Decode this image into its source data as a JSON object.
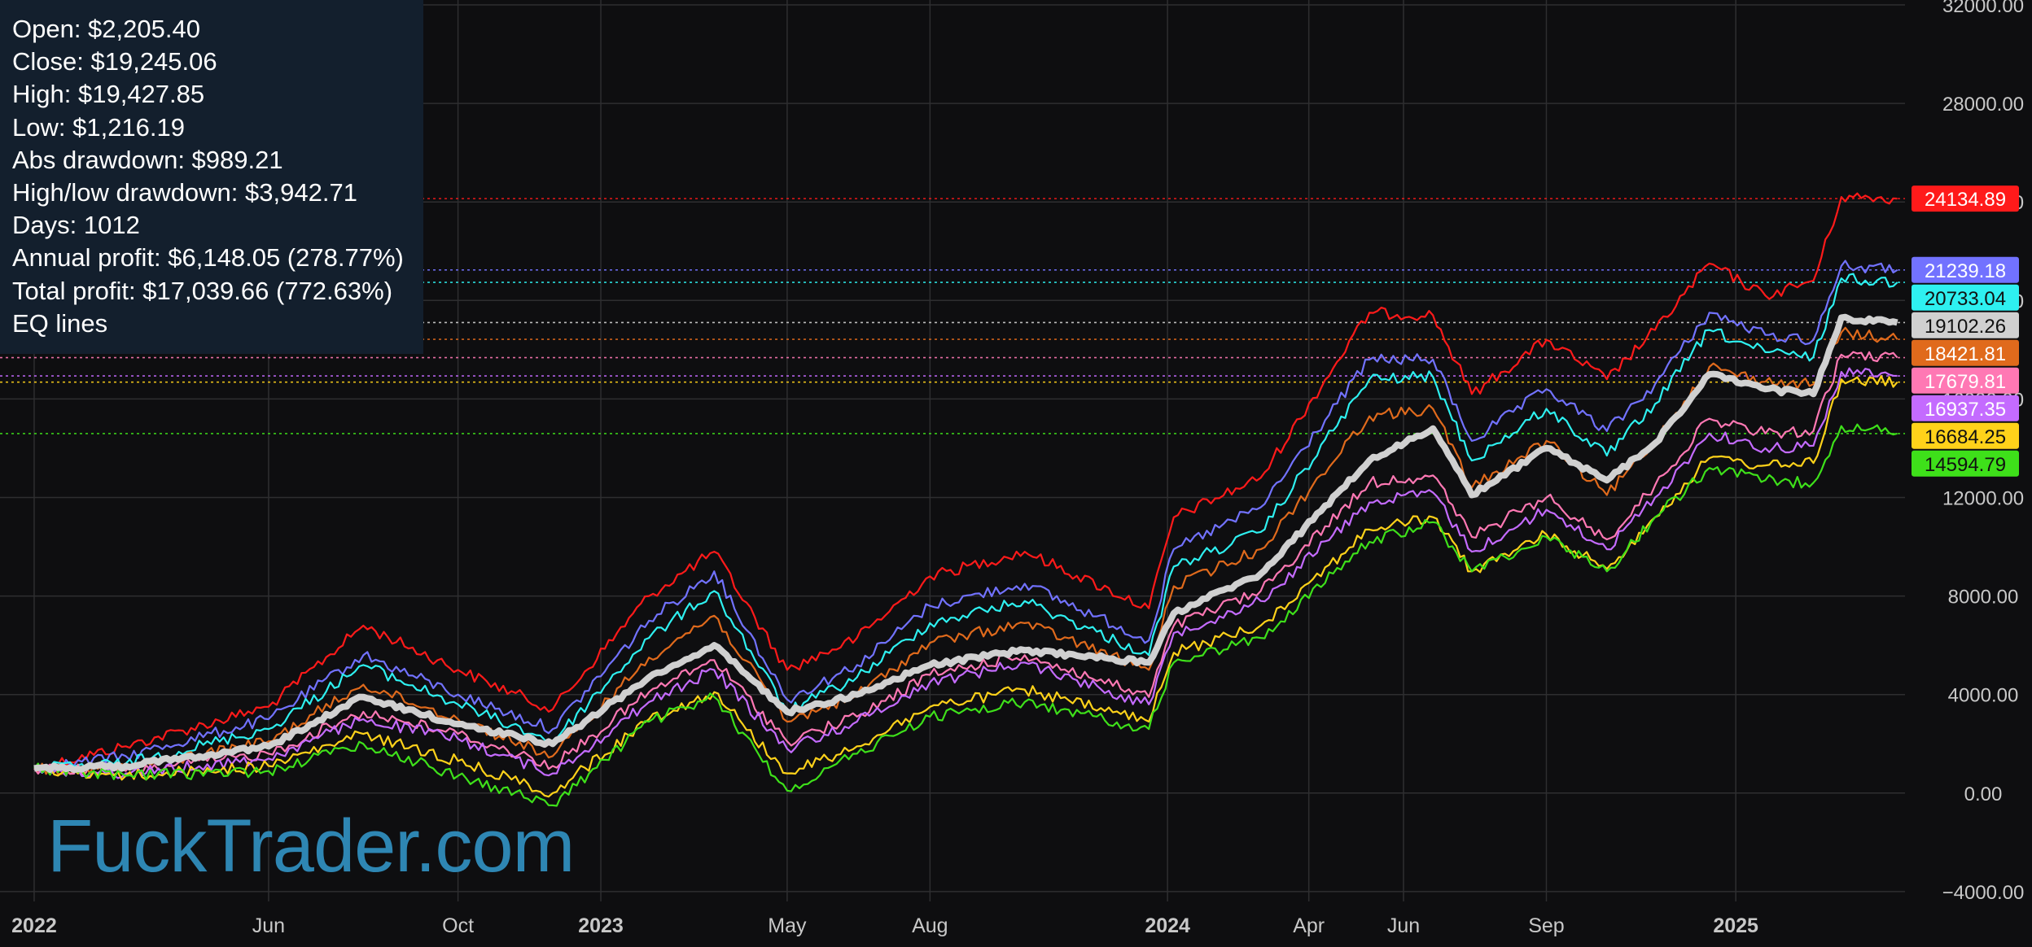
{
  "stats": {
    "open": "Open: $2,205.40",
    "close": "Close: $19,245.06",
    "high": "High: $19,427.85",
    "low": "Low: $1,216.19",
    "abs_drawdown": "Abs drawdown: $989.21",
    "high_low_drawdown": "High/low drawdown: $3,942.71",
    "days": "Days: 1012",
    "annual_profit": "Annual profit: $6,148.05 (278.77%)",
    "total_profit": "Total profit: $17,039.66 (772.63%)",
    "eq_lines": "EQ lines"
  },
  "watermark": "FuckTrader.com",
  "colors": {
    "background": "#0e0e10",
    "grid": "#2e2e30",
    "axis_text": "#c8c8c8",
    "panel": "#131f2d",
    "watermark": "#2e86b3"
  },
  "chart_data": {
    "type": "line",
    "title": "",
    "xlabel": "",
    "ylabel": "",
    "ylim": [
      -4600,
      32000
    ],
    "y_ticks": [
      "32000.00",
      "28000.00",
      "24000.00",
      "20000.00",
      "16000.00",
      "12000.00",
      "8000.00",
      "4000.00",
      "0.00",
      "−4000.00"
    ],
    "x_ticks": [
      {
        "label": "2022",
        "date": "2022-01-01",
        "bold": true
      },
      {
        "label": "Jun",
        "date": "2022-06-01",
        "bold": false
      },
      {
        "label": "Oct",
        "date": "2022-10-01",
        "bold": false
      },
      {
        "label": "2023",
        "date": "2023-01-01",
        "bold": true
      },
      {
        "label": "May",
        "date": "2023-05-01",
        "bold": false
      },
      {
        "label": "Aug",
        "date": "2023-08-01",
        "bold": false
      },
      {
        "label": "2024",
        "date": "2024-01-01",
        "bold": true
      },
      {
        "label": "Apr",
        "date": "2024-04-01",
        "bold": false
      },
      {
        "label": "Jun",
        "date": "2024-06-01",
        "bold": false
      },
      {
        "label": "Sep",
        "date": "2024-09-01",
        "bold": false
      },
      {
        "label": "2025",
        "date": "2025-01-01",
        "bold": true
      }
    ],
    "x_range": [
      "2021-12-10",
      "2025-04-20"
    ],
    "grid": true,
    "series": [
      {
        "color": "#ff1a1a",
        "last_label": "24134.89",
        "points": [
          [
            "2022-01-01",
            1000
          ],
          [
            "2022-03-01",
            1900
          ],
          [
            "2022-06-01",
            3500
          ],
          [
            "2022-08-01",
            6800
          ],
          [
            "2022-10-01",
            5000
          ],
          [
            "2022-12-01",
            3400
          ],
          [
            "2023-02-01",
            8000
          ],
          [
            "2023-03-15",
            9800
          ],
          [
            "2023-05-01",
            5000
          ],
          [
            "2023-06-15",
            6300
          ],
          [
            "2023-08-01",
            8800
          ],
          [
            "2023-10-01",
            9800
          ],
          [
            "2023-12-20",
            7500
          ],
          [
            "2024-01-05",
            11200
          ],
          [
            "2024-03-01",
            12800
          ],
          [
            "2024-05-10",
            19500
          ],
          [
            "2024-06-20",
            19400
          ],
          [
            "2024-07-15",
            16200
          ],
          [
            "2024-09-01",
            18400
          ],
          [
            "2024-10-10",
            16800
          ],
          [
            "2024-11-10",
            18800
          ],
          [
            "2024-12-15",
            21500
          ],
          [
            "2025-01-20",
            20200
          ],
          [
            "2025-02-20",
            20800
          ],
          [
            "2025-03-10",
            24200
          ],
          [
            "2025-04-15",
            24134.89
          ]
        ]
      },
      {
        "color": "#7272ff",
        "last_label": "21239.18",
        "points": [
          [
            "2022-01-01",
            1000
          ],
          [
            "2022-03-01",
            1500
          ],
          [
            "2022-06-01",
            3000
          ],
          [
            "2022-08-01",
            5600
          ],
          [
            "2022-10-01",
            4000
          ],
          [
            "2022-12-01",
            2600
          ],
          [
            "2023-02-01",
            7000
          ],
          [
            "2023-03-15",
            9000
          ],
          [
            "2023-05-01",
            3800
          ],
          [
            "2023-06-15",
            5200
          ],
          [
            "2023-08-01",
            7600
          ],
          [
            "2023-10-01",
            8500
          ],
          [
            "2023-12-20",
            6200
          ],
          [
            "2024-01-05",
            9900
          ],
          [
            "2024-03-01",
            11600
          ],
          [
            "2024-05-10",
            17600
          ],
          [
            "2024-06-20",
            17600
          ],
          [
            "2024-07-15",
            14300
          ],
          [
            "2024-09-01",
            16400
          ],
          [
            "2024-10-10",
            14700
          ],
          [
            "2024-11-10",
            16600
          ],
          [
            "2024-12-15",
            19500
          ],
          [
            "2025-01-20",
            18600
          ],
          [
            "2025-02-20",
            18400
          ],
          [
            "2025-03-10",
            21400
          ],
          [
            "2025-04-15",
            21239.18
          ]
        ]
      },
      {
        "color": "#2ef0f0",
        "last_label": "20733.04",
        "points": [
          [
            "2022-01-01",
            1000
          ],
          [
            "2022-03-01",
            1200
          ],
          [
            "2022-06-01",
            2600
          ],
          [
            "2022-08-01",
            5200
          ],
          [
            "2022-10-01",
            3600
          ],
          [
            "2022-12-01",
            2100
          ],
          [
            "2023-02-01",
            6300
          ],
          [
            "2023-03-15",
            8200
          ],
          [
            "2023-05-01",
            3300
          ],
          [
            "2023-06-15",
            4700
          ],
          [
            "2023-08-01",
            6900
          ],
          [
            "2023-10-01",
            7800
          ],
          [
            "2023-12-20",
            5600
          ],
          [
            "2024-01-05",
            9200
          ],
          [
            "2024-03-01",
            10600
          ],
          [
            "2024-05-10",
            16800
          ],
          [
            "2024-06-20",
            16900
          ],
          [
            "2024-07-15",
            13500
          ],
          [
            "2024-09-01",
            15600
          ],
          [
            "2024-10-10",
            13700
          ],
          [
            "2024-11-10",
            15800
          ],
          [
            "2024-12-15",
            18800
          ],
          [
            "2025-01-20",
            17900
          ],
          [
            "2025-02-20",
            17700
          ],
          [
            "2025-03-10",
            20900
          ],
          [
            "2025-04-15",
            20733.04
          ]
        ]
      },
      {
        "color": "#e06a1c",
        "last_label": "18421.81",
        "points": [
          [
            "2022-01-01",
            1000
          ],
          [
            "2022-03-01",
            1000
          ],
          [
            "2022-06-01",
            2100
          ],
          [
            "2022-08-01",
            4400
          ],
          [
            "2022-10-01",
            3000
          ],
          [
            "2022-12-01",
            1500
          ],
          [
            "2023-02-01",
            5500
          ],
          [
            "2023-03-15",
            7200
          ],
          [
            "2023-05-01",
            2900
          ],
          [
            "2023-06-15",
            4000
          ],
          [
            "2023-08-01",
            6100
          ],
          [
            "2023-10-01",
            6900
          ],
          [
            "2023-12-20",
            5000
          ],
          [
            "2024-01-05",
            8400
          ],
          [
            "2024-03-01",
            9900
          ],
          [
            "2024-05-10",
            15300
          ],
          [
            "2024-06-20",
            15600
          ],
          [
            "2024-07-15",
            12400
          ],
          [
            "2024-09-01",
            14300
          ],
          [
            "2024-10-10",
            12100
          ],
          [
            "2024-11-10",
            14300
          ],
          [
            "2024-12-15",
            17300
          ],
          [
            "2025-01-20",
            16700
          ],
          [
            "2025-02-20",
            16600
          ],
          [
            "2025-03-10",
            18700
          ],
          [
            "2025-04-15",
            18421.81
          ]
        ]
      },
      {
        "color": "#d0d0d0",
        "last_label": "19102.26",
        "width": 8,
        "points": [
          [
            "2022-01-01",
            1000
          ],
          [
            "2022-03-01",
            1100
          ],
          [
            "2022-06-01",
            1900
          ],
          [
            "2022-08-01",
            3900
          ],
          [
            "2022-10-01",
            2800
          ],
          [
            "2022-12-01",
            2000
          ],
          [
            "2023-02-01",
            4700
          ],
          [
            "2023-03-15",
            6000
          ],
          [
            "2023-05-01",
            3300
          ],
          [
            "2023-06-15",
            4000
          ],
          [
            "2023-08-01",
            5200
          ],
          [
            "2023-10-01",
            5800
          ],
          [
            "2023-12-20",
            5300
          ],
          [
            "2024-01-05",
            7300
          ],
          [
            "2024-03-01",
            8900
          ],
          [
            "2024-05-10",
            13500
          ],
          [
            "2024-06-20",
            14800
          ],
          [
            "2024-07-15",
            12100
          ],
          [
            "2024-09-01",
            14000
          ],
          [
            "2024-10-10",
            12700
          ],
          [
            "2024-11-10",
            14200
          ],
          [
            "2024-12-15",
            17000
          ],
          [
            "2025-01-20",
            16400
          ],
          [
            "2025-02-20",
            16200
          ],
          [
            "2025-03-10",
            19300
          ],
          [
            "2025-04-15",
            19102.26
          ]
        ]
      },
      {
        "color": "#ff78b4",
        "last_label": "17679.81",
        "points": [
          [
            "2022-01-01",
            1000
          ],
          [
            "2022-03-01",
            900
          ],
          [
            "2022-06-01",
            1600
          ],
          [
            "2022-08-01",
            3300
          ],
          [
            "2022-10-01",
            2400
          ],
          [
            "2022-12-01",
            1100
          ],
          [
            "2023-02-01",
            4100
          ],
          [
            "2023-03-15",
            5400
          ],
          [
            "2023-05-01",
            2100
          ],
          [
            "2023-06-15",
            3100
          ],
          [
            "2023-08-01",
            4800
          ],
          [
            "2023-10-01",
            5600
          ],
          [
            "2023-12-20",
            3900
          ],
          [
            "2024-01-05",
            6800
          ],
          [
            "2024-03-01",
            8200
          ],
          [
            "2024-05-10",
            12600
          ],
          [
            "2024-06-20",
            12900
          ],
          [
            "2024-07-15",
            10400
          ],
          [
            "2024-09-01",
            12000
          ],
          [
            "2024-10-10",
            10300
          ],
          [
            "2024-11-10",
            12500
          ],
          [
            "2024-12-15",
            15200
          ],
          [
            "2025-01-20",
            14600
          ],
          [
            "2025-02-20",
            14700
          ],
          [
            "2025-03-10",
            17800
          ],
          [
            "2025-04-15",
            17679.81
          ]
        ]
      },
      {
        "color": "#c46bff",
        "last_label": "16937.35",
        "points": [
          [
            "2022-01-01",
            1000
          ],
          [
            "2022-03-01",
            800
          ],
          [
            "2022-06-01",
            1400
          ],
          [
            "2022-08-01",
            3000
          ],
          [
            "2022-10-01",
            2200
          ],
          [
            "2022-12-01",
            800
          ],
          [
            "2023-02-01",
            3700
          ],
          [
            "2023-03-15",
            5000
          ],
          [
            "2023-05-01",
            1800
          ],
          [
            "2023-06-15",
            2900
          ],
          [
            "2023-08-01",
            4500
          ],
          [
            "2023-10-01",
            5300
          ],
          [
            "2023-12-20",
            3600
          ],
          [
            "2024-01-05",
            6500
          ],
          [
            "2024-03-01",
            7800
          ],
          [
            "2024-05-10",
            11800
          ],
          [
            "2024-06-20",
            12200
          ],
          [
            "2024-07-15",
            9800
          ],
          [
            "2024-09-01",
            11500
          ],
          [
            "2024-10-10",
            9900
          ],
          [
            "2024-11-10",
            12000
          ],
          [
            "2024-12-15",
            14600
          ],
          [
            "2025-01-20",
            14000
          ],
          [
            "2025-02-20",
            14100
          ],
          [
            "2025-03-10",
            17100
          ],
          [
            "2025-04-15",
            16937.35
          ]
        ]
      },
      {
        "color": "#ffd21a",
        "last_label": "16684.25",
        "points": [
          [
            "2022-01-01",
            1000
          ],
          [
            "2022-03-01",
            700
          ],
          [
            "2022-06-01",
            1100
          ],
          [
            "2022-08-01",
            2400
          ],
          [
            "2022-10-01",
            1300
          ],
          [
            "2022-12-01",
            0
          ],
          [
            "2023-02-01",
            3000
          ],
          [
            "2023-03-15",
            4100
          ],
          [
            "2023-05-01",
            800
          ],
          [
            "2023-06-15",
            1900
          ],
          [
            "2023-08-01",
            3500
          ],
          [
            "2023-10-01",
            4200
          ],
          [
            "2023-12-20",
            2900
          ],
          [
            "2024-01-05",
            5700
          ],
          [
            "2024-03-01",
            6800
          ],
          [
            "2024-05-10",
            10700
          ],
          [
            "2024-06-20",
            11200
          ],
          [
            "2024-07-15",
            9000
          ],
          [
            "2024-09-01",
            10500
          ],
          [
            "2024-10-10",
            9100
          ],
          [
            "2024-11-10",
            11200
          ],
          [
            "2024-12-15",
            13600
          ],
          [
            "2025-01-20",
            13300
          ],
          [
            "2025-02-20",
            13400
          ],
          [
            "2025-03-10",
            16800
          ],
          [
            "2025-04-15",
            16684.25
          ]
        ]
      },
      {
        "color": "#3ee01a",
        "last_label": "14594.79",
        "points": [
          [
            "2022-01-01",
            1000
          ],
          [
            "2022-03-01",
            700
          ],
          [
            "2022-06-01",
            900
          ],
          [
            "2022-08-01",
            2000
          ],
          [
            "2022-10-01",
            700
          ],
          [
            "2022-12-01",
            -500
          ],
          [
            "2023-02-01",
            2900
          ],
          [
            "2023-03-15",
            3900
          ],
          [
            "2023-05-01",
            100
          ],
          [
            "2023-06-15",
            1600
          ],
          [
            "2023-08-01",
            3100
          ],
          [
            "2023-10-01",
            3700
          ],
          [
            "2023-12-20",
            2600
          ],
          [
            "2024-01-05",
            5300
          ],
          [
            "2024-03-01",
            6300
          ],
          [
            "2024-05-10",
            10200
          ],
          [
            "2024-06-20",
            11000
          ],
          [
            "2024-07-15",
            9000
          ],
          [
            "2024-09-01",
            10400
          ],
          [
            "2024-10-10",
            9000
          ],
          [
            "2024-11-10",
            11200
          ],
          [
            "2024-12-15",
            13200
          ],
          [
            "2025-01-20",
            12700
          ],
          [
            "2025-02-20",
            12600
          ],
          [
            "2025-03-10",
            14900
          ],
          [
            "2025-04-15",
            14594.79
          ]
        ]
      }
    ]
  }
}
